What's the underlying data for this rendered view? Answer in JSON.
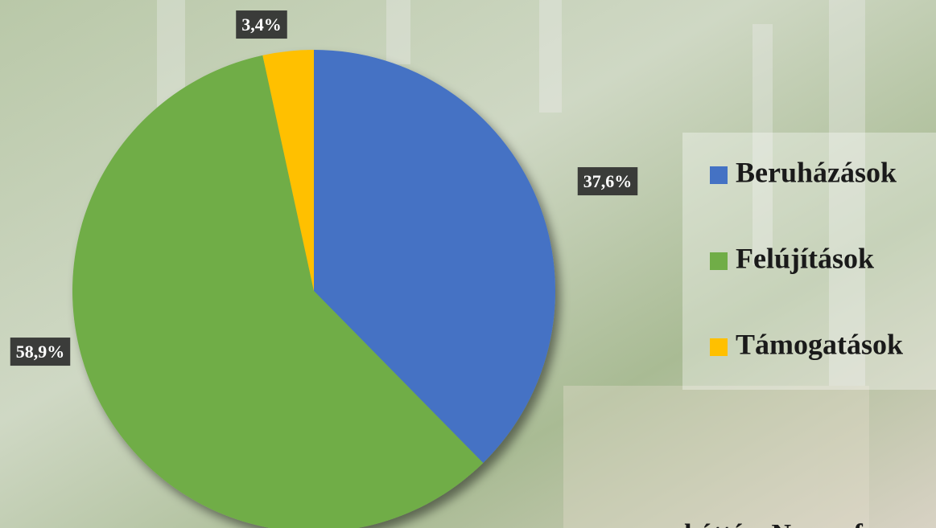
{
  "chart_data": {
    "type": "pie",
    "categories": [
      "Beruházások",
      "Felújítások",
      "Támogatások"
    ],
    "values": [
      37.6,
      58.9,
      3.4
    ],
    "value_labels": [
      "37,6%",
      "58,9%",
      "3,4%"
    ],
    "colors": [
      "#4472c4",
      "#70ad47",
      "#ffc000"
    ],
    "legend": "right",
    "annotation": "háttér: Normafa"
  }
}
